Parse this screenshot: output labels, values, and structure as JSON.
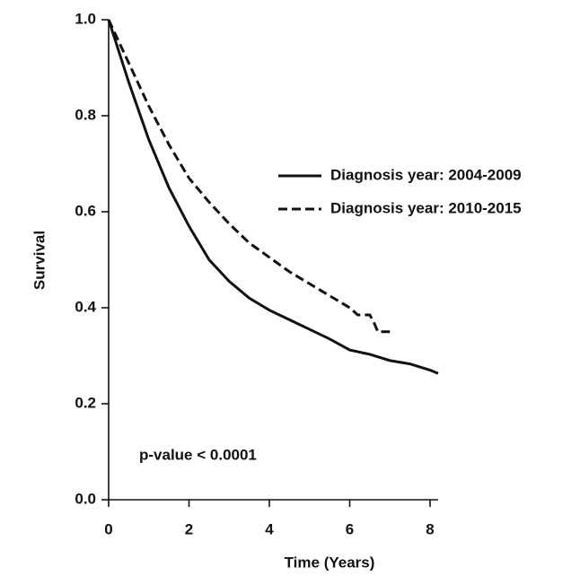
{
  "chart_data": {
    "type": "line",
    "xlabel": "Time (Years)",
    "ylabel": "Survival",
    "annotation": "p-value < 0.0001",
    "xlim": [
      0,
      8.2
    ],
    "ylim": [
      0,
      1
    ],
    "xticks": [
      0,
      2,
      4,
      6,
      8
    ],
    "yticks": [
      {
        "value": 0,
        "label": "0.0"
      },
      {
        "value": 0.2,
        "label": "0.2"
      },
      {
        "value": 0.4,
        "label": "0.4"
      },
      {
        "value": 0.6,
        "label": "0.6"
      },
      {
        "value": 0.8,
        "label": "0.8"
      },
      {
        "value": 1,
        "label": "1.0"
      }
    ],
    "legend": "upper right",
    "series": [
      {
        "name": "Diagnosis year: 2004-2009",
        "color": "#111111",
        "linestyle": "solid",
        "x": [
          0,
          0.5,
          1,
          1.5,
          2,
          2.5,
          3,
          3.5,
          4,
          4.5,
          5,
          5.5,
          6,
          6.5,
          7,
          7.5,
          8,
          8.2
        ],
        "values": [
          1.0,
          0.87,
          0.75,
          0.65,
          0.57,
          0.5,
          0.455,
          0.42,
          0.395,
          0.375,
          0.355,
          0.335,
          0.312,
          0.303,
          0.29,
          0.283,
          0.27,
          0.263
        ]
      },
      {
        "name": "Diagnosis year: 2010-2015",
        "color": "#111111",
        "linestyle": "dashed",
        "x": [
          0,
          0.5,
          1,
          1.5,
          2,
          2.5,
          3,
          3.5,
          4,
          4.5,
          5,
          5.5,
          6,
          6.2,
          6.5,
          6.6,
          6.7,
          7
        ],
        "values": [
          1.0,
          0.91,
          0.82,
          0.74,
          0.67,
          0.62,
          0.575,
          0.535,
          0.505,
          0.475,
          0.45,
          0.425,
          0.4,
          0.385,
          0.385,
          0.37,
          0.35,
          0.35
        ]
      }
    ]
  }
}
